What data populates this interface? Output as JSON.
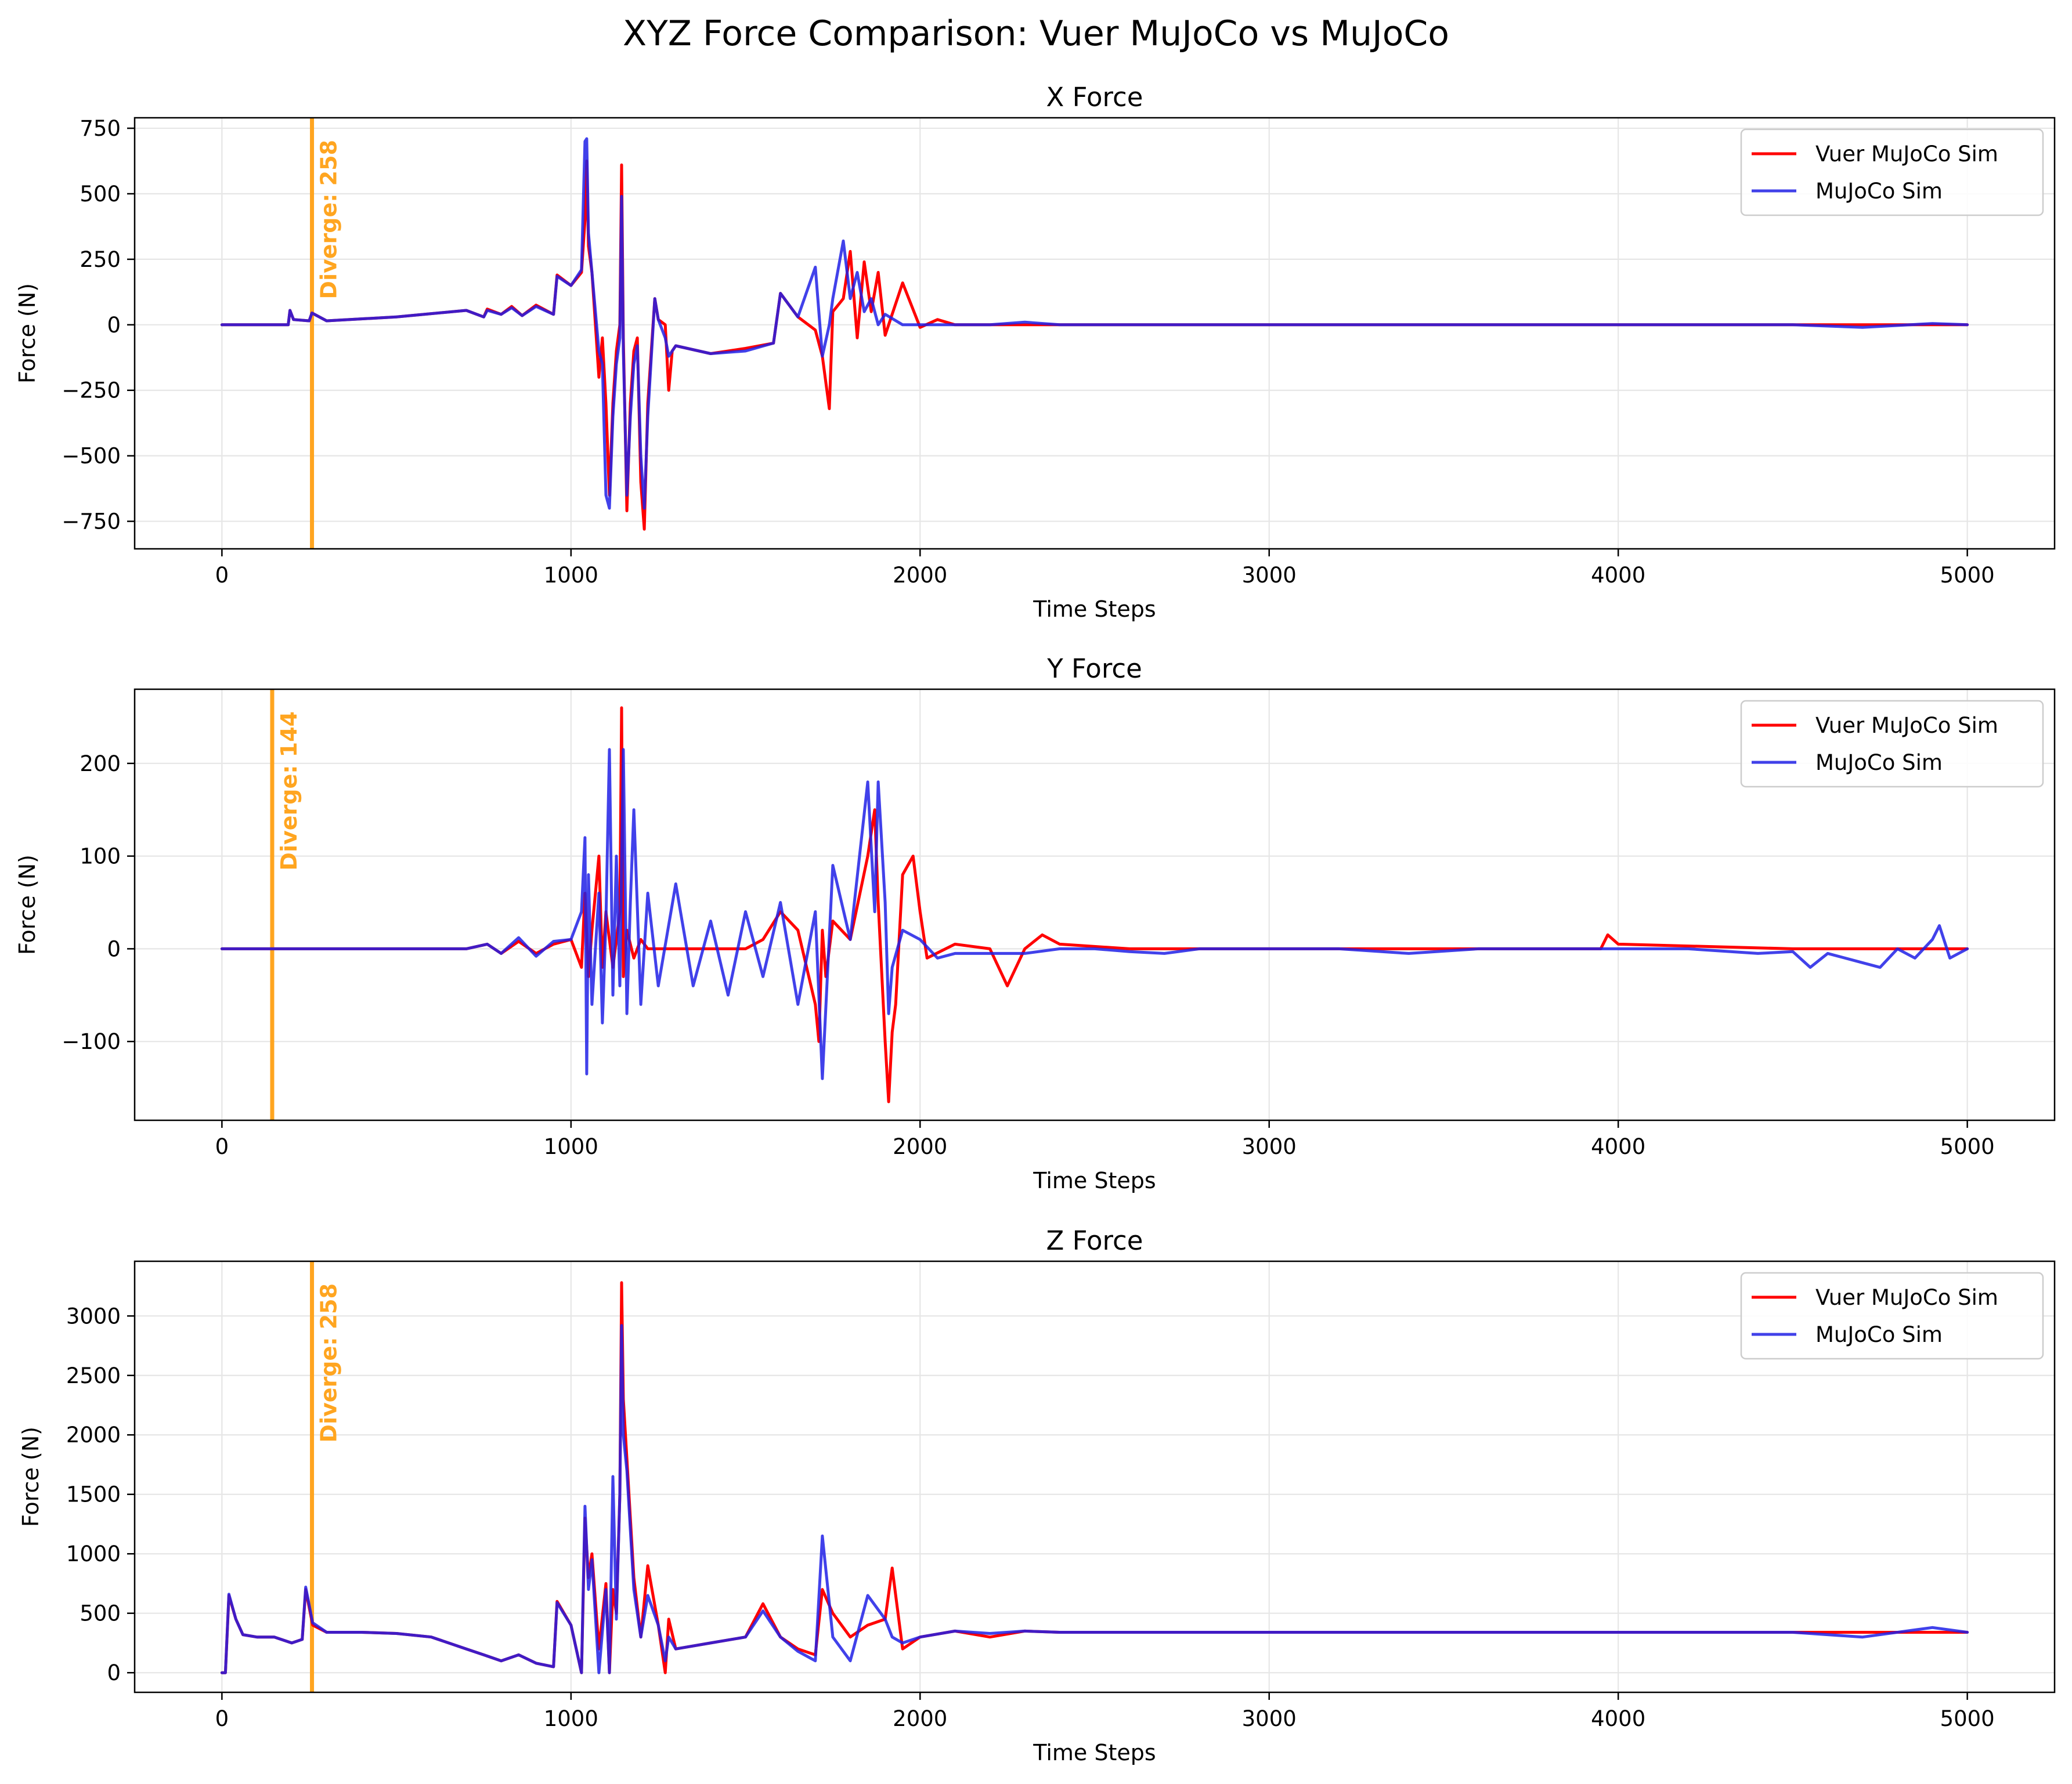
{
  "figure": {
    "suptitle": "XYZ Force Comparison: Vuer MuJoCo vs MuJoCo"
  },
  "colors": {
    "vuer": "#ff0000",
    "mujoco": "#2020e6",
    "diverge": "#ffa520",
    "grid": "#e6e6e6",
    "axis": "#000000"
  },
  "chart_data": [
    {
      "type": "line",
      "title": "X Force",
      "xlabel": "Time Steps",
      "ylabel": "Force (N)",
      "xlim": [
        -250,
        5250
      ],
      "ylim": [
        -855,
        790
      ],
      "xticks": [
        0,
        1000,
        2000,
        3000,
        4000,
        5000
      ],
      "yticks": [
        -750,
        -500,
        -250,
        0,
        250,
        500,
        750
      ],
      "ytick_labels": [
        "−750",
        "−500",
        "−250",
        "0",
        "250",
        "500",
        "750"
      ],
      "grid": true,
      "legend_position": "upper right",
      "diverge": {
        "x": 258,
        "label": "Diverge: 258"
      },
      "series": [
        {
          "name": "Vuer MuJoCo Sim",
          "color_key": "vuer",
          "x": [
            0,
            100,
            190,
            195,
            205,
            250,
            258,
            300,
            500,
            700,
            750,
            760,
            800,
            830,
            860,
            900,
            950,
            960,
            1000,
            1030,
            1040,
            1045,
            1050,
            1060,
            1080,
            1090,
            1100,
            1110,
            1120,
            1130,
            1140,
            1145,
            1150,
            1160,
            1170,
            1180,
            1190,
            1200,
            1210,
            1220,
            1240,
            1250,
            1270,
            1280,
            1290,
            1300,
            1400,
            1500,
            1580,
            1600,
            1650,
            1700,
            1720,
            1740,
            1750,
            1780,
            1800,
            1820,
            1840,
            1860,
            1880,
            1900,
            1950,
            2000,
            2050,
            2100,
            2200,
            2300,
            2400,
            3000,
            4000,
            5000
          ],
          "y": [
            0,
            0,
            0,
            55,
            20,
            15,
            45,
            15,
            30,
            55,
            30,
            60,
            40,
            70,
            35,
            75,
            40,
            190,
            150,
            200,
            400,
            625,
            300,
            200,
            -200,
            -50,
            -300,
            -650,
            -300,
            -100,
            0,
            610,
            -50,
            -710,
            -300,
            -100,
            -50,
            -600,
            -780,
            -300,
            100,
            20,
            0,
            -250,
            -100,
            -80,
            -110,
            -90,
            -70,
            120,
            30,
            -20,
            -120,
            -320,
            50,
            100,
            280,
            -50,
            240,
            50,
            200,
            -40,
            160,
            -10,
            20,
            0,
            0,
            0,
            0,
            0,
            0,
            0
          ]
        },
        {
          "name": "MuJoCo Sim",
          "color_key": "mujoco",
          "x": [
            0,
            100,
            190,
            195,
            205,
            250,
            258,
            300,
            500,
            700,
            750,
            760,
            800,
            830,
            860,
            900,
            950,
            960,
            1000,
            1030,
            1040,
            1045,
            1050,
            1060,
            1080,
            1090,
            1100,
            1110,
            1120,
            1130,
            1140,
            1145,
            1150,
            1160,
            1170,
            1180,
            1190,
            1200,
            1210,
            1220,
            1240,
            1250,
            1270,
            1280,
            1290,
            1300,
            1400,
            1500,
            1580,
            1600,
            1650,
            1700,
            1720,
            1740,
            1750,
            1780,
            1800,
            1820,
            1840,
            1860,
            1880,
            1900,
            1950,
            2000,
            2050,
            2100,
            2200,
            2300,
            2400,
            3000,
            4000,
            4500,
            4700,
            4900,
            5000
          ],
          "y": [
            0,
            0,
            0,
            55,
            20,
            15,
            45,
            15,
            30,
            55,
            30,
            55,
            40,
            65,
            35,
            70,
            40,
            185,
            150,
            210,
            700,
            710,
            350,
            200,
            -100,
            -150,
            -650,
            -700,
            -350,
            -150,
            -50,
            490,
            -100,
            -650,
            -350,
            -150,
            -80,
            -500,
            -700,
            -350,
            100,
            20,
            -50,
            -120,
            -100,
            -80,
            -110,
            -100,
            -70,
            120,
            30,
            220,
            -120,
            0,
            100,
            320,
            100,
            200,
            50,
            100,
            0,
            40,
            0,
            0,
            0,
            0,
            0,
            10,
            0,
            0,
            0,
            0,
            -10,
            5,
            0
          ]
        }
      ]
    },
    {
      "type": "line",
      "title": "Y Force",
      "xlabel": "Time Steps",
      "ylabel": "Force (N)",
      "xlim": [
        -250,
        5250
      ],
      "ylim": [
        -185,
        280
      ],
      "xticks": [
        0,
        1000,
        2000,
        3000,
        4000,
        5000
      ],
      "yticks": [
        -100,
        0,
        100,
        200
      ],
      "ytick_labels": [
        "−100",
        "0",
        "100",
        "200"
      ],
      "grid": true,
      "legend_position": "upper right",
      "diverge": {
        "x": 144,
        "label": "Diverge: 144"
      },
      "series": [
        {
          "name": "Vuer MuJoCo Sim",
          "color_key": "vuer",
          "x": [
            0,
            500,
            700,
            760,
            800,
            850,
            900,
            950,
            1000,
            1030,
            1040,
            1050,
            1060,
            1080,
            1090,
            1100,
            1120,
            1140,
            1145,
            1150,
            1160,
            1180,
            1200,
            1220,
            1300,
            1400,
            1500,
            1550,
            1600,
            1650,
            1700,
            1710,
            1720,
            1730,
            1750,
            1800,
            1850,
            1870,
            1880,
            1900,
            1910,
            1920,
            1930,
            1950,
            1980,
            2000,
            2020,
            2100,
            2200,
            2250,
            2300,
            2350,
            2400,
            2600,
            3000,
            3950,
            3970,
            4000,
            4500,
            5000
          ],
          "y": [
            0,
            0,
            0,
            5,
            -5,
            8,
            -5,
            5,
            10,
            -20,
            60,
            -30,
            20,
            100,
            -20,
            40,
            -20,
            40,
            260,
            -30,
            20,
            -10,
            10,
            0,
            0,
            0,
            0,
            10,
            40,
            20,
            -60,
            -100,
            20,
            -30,
            30,
            10,
            100,
            150,
            50,
            -100,
            -165,
            -90,
            -60,
            80,
            100,
            40,
            -10,
            5,
            0,
            -40,
            0,
            15,
            5,
            0,
            0,
            0,
            15,
            5,
            0,
            0
          ]
        },
        {
          "name": "MuJoCo Sim",
          "color_key": "mujoco",
          "x": [
            0,
            500,
            700,
            760,
            800,
            850,
            900,
            950,
            1000,
            1030,
            1040,
            1045,
            1050,
            1060,
            1080,
            1090,
            1100,
            1110,
            1120,
            1130,
            1140,
            1150,
            1160,
            1170,
            1180,
            1200,
            1220,
            1250,
            1300,
            1350,
            1400,
            1450,
            1500,
            1550,
            1600,
            1650,
            1700,
            1720,
            1750,
            1800,
            1850,
            1870,
            1880,
            1900,
            1910,
            1920,
            1950,
            2000,
            2050,
            2100,
            2200,
            2300,
            2400,
            2500,
            2600,
            2700,
            2800,
            3000,
            3200,
            3400,
            3600,
            4000,
            4200,
            4400,
            4500,
            4550,
            4600,
            4700,
            4750,
            4800,
            4850,
            4900,
            4920,
            4950,
            5000
          ],
          "y": [
            0,
            0,
            0,
            5,
            -5,
            12,
            -8,
            8,
            10,
            40,
            120,
            -135,
            80,
            -60,
            60,
            -80,
            30,
            215,
            -50,
            100,
            -40,
            215,
            -70,
            50,
            150,
            -60,
            60,
            -40,
            70,
            -40,
            30,
            -50,
            40,
            -30,
            50,
            -60,
            40,
            -140,
            90,
            10,
            180,
            40,
            180,
            50,
            -70,
            -20,
            20,
            10,
            -10,
            -5,
            -5,
            -5,
            0,
            0,
            -3,
            -5,
            0,
            0,
            0,
            -5,
            0,
            0,
            0,
            -5,
            -3,
            -20,
            -5,
            -15,
            -20,
            0,
            -10,
            10,
            25,
            -10,
            0
          ]
        }
      ]
    },
    {
      "type": "line",
      "title": "Z Force",
      "xlabel": "Time Steps",
      "ylabel": "Force (N)",
      "xlim": [
        -250,
        5250
      ],
      "ylim": [
        -165,
        3460
      ],
      "xticks": [
        0,
        1000,
        2000,
        3000,
        4000,
        5000
      ],
      "yticks": [
        0,
        500,
        1000,
        1500,
        2000,
        2500,
        3000
      ],
      "ytick_labels": [
        "0",
        "500",
        "1000",
        "1500",
        "2000",
        "2500",
        "3000"
      ],
      "grid": true,
      "legend_position": "upper right",
      "diverge": {
        "x": 258,
        "label": "Diverge: 258"
      },
      "series": [
        {
          "name": "Vuer MuJoCo Sim",
          "color_key": "vuer",
          "x": [
            0,
            10,
            20,
            40,
            60,
            100,
            150,
            200,
            230,
            240,
            260,
            300,
            400,
            500,
            600,
            700,
            750,
            800,
            850,
            900,
            950,
            960,
            1000,
            1030,
            1040,
            1050,
            1060,
            1080,
            1100,
            1110,
            1120,
            1130,
            1140,
            1145,
            1150,
            1160,
            1180,
            1200,
            1220,
            1250,
            1270,
            1280,
            1300,
            1400,
            1500,
            1550,
            1600,
            1650,
            1700,
            1720,
            1750,
            1800,
            1850,
            1900,
            1920,
            1950,
            2000,
            2100,
            2200,
            2300,
            2400,
            3000,
            4000,
            4500,
            5000
          ],
          "y": [
            0,
            0,
            650,
            450,
            320,
            300,
            300,
            250,
            280,
            700,
            400,
            340,
            340,
            330,
            300,
            200,
            150,
            100,
            150,
            80,
            50,
            600,
            400,
            0,
            1300,
            800,
            1000,
            200,
            750,
            0,
            700,
            500,
            1500,
            3280,
            2300,
            1800,
            800,
            300,
            900,
            400,
            0,
            450,
            200,
            250,
            300,
            580,
            300,
            200,
            150,
            700,
            500,
            300,
            400,
            450,
            880,
            200,
            300,
            350,
            300,
            350,
            340,
            340,
            340,
            340,
            340
          ]
        },
        {
          "name": "MuJoCo Sim",
          "color_key": "mujoco",
          "x": [
            0,
            10,
            20,
            40,
            60,
            100,
            150,
            200,
            230,
            240,
            260,
            300,
            400,
            500,
            600,
            700,
            750,
            800,
            850,
            900,
            950,
            960,
            1000,
            1030,
            1040,
            1050,
            1060,
            1080,
            1100,
            1110,
            1120,
            1130,
            1140,
            1145,
            1150,
            1160,
            1180,
            1200,
            1220,
            1250,
            1270,
            1280,
            1300,
            1400,
            1500,
            1550,
            1600,
            1650,
            1700,
            1720,
            1750,
            1800,
            1850,
            1900,
            1920,
            1950,
            2000,
            2100,
            2200,
            2300,
            2400,
            3000,
            4000,
            4500,
            4700,
            4900,
            5000
          ],
          "y": [
            0,
            0,
            660,
            450,
            320,
            300,
            300,
            250,
            280,
            720,
            420,
            340,
            340,
            330,
            300,
            200,
            150,
            100,
            150,
            80,
            50,
            590,
            400,
            0,
            1400,
            700,
            950,
            0,
            700,
            0,
            1650,
            450,
            1500,
            2920,
            2000,
            1700,
            700,
            300,
            650,
            400,
            100,
            300,
            200,
            250,
            300,
            520,
            300,
            180,
            100,
            1150,
            300,
            100,
            650,
            450,
            300,
            250,
            300,
            350,
            330,
            350,
            340,
            340,
            340,
            340,
            300,
            380,
            340
          ]
        }
      ]
    }
  ]
}
